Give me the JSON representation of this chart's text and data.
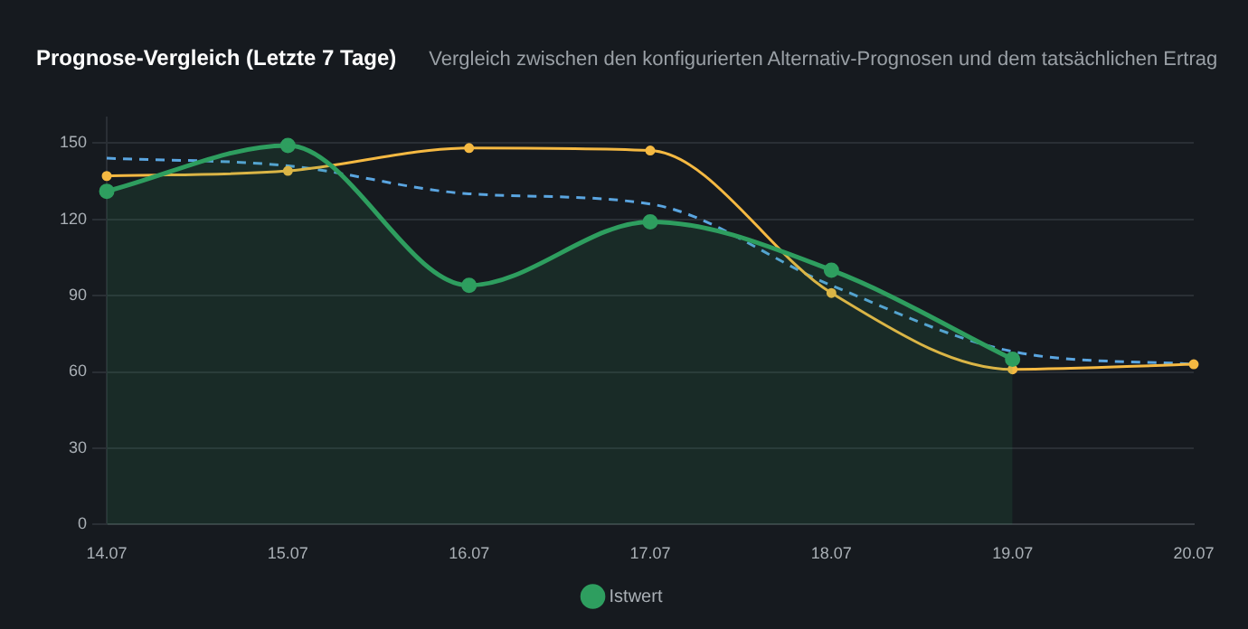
{
  "chart_data": {
    "type": "line",
    "title": "Prognose-Vergleich (Letzte 7 Tage)",
    "subtitle": "Vergleich zwischen den konfigurierten Alternativ-Prognosen und dem tatsächlichen Ertrag",
    "categories": [
      "14.07",
      "15.07",
      "16.07",
      "17.07",
      "18.07",
      "19.07",
      "20.07"
    ],
    "series": [
      {
        "name": "Istwert",
        "color": "#2e9e5f",
        "type": "area",
        "values": [
          131,
          149,
          94,
          119,
          100,
          65,
          null
        ]
      },
      {
        "color": "#f5b942",
        "type": "line",
        "values": [
          137,
          139,
          148,
          147,
          91,
          61,
          63
        ]
      },
      {
        "color": "#5aa5e0",
        "type": "line",
        "line_style": "dashed",
        "marker": "none",
        "values": [
          144,
          141,
          130,
          126,
          94,
          68,
          63
        ]
      }
    ],
    "ylim": [
      0,
      160
    ],
    "yticks": [
      0,
      30,
      60,
      90,
      120,
      150
    ],
    "grid": "y",
    "legend": "bottom",
    "marker": "circle"
  }
}
